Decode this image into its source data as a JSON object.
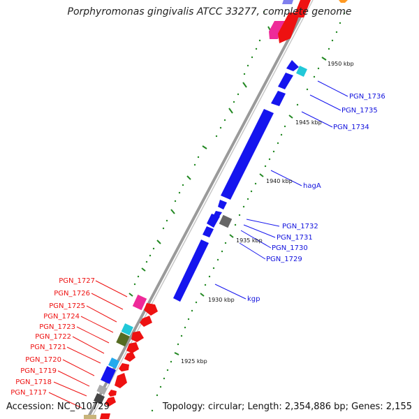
{
  "title": "Porphyromonas gingivalis ATCC 33277, complete genome",
  "accession": "Accession: NC_010729",
  "topology": "Topology: circular; Length: 2,354,886 bp; Genes: 2,155",
  "colors": {
    "blue": "#1515ee",
    "red": "#ee1111",
    "magenta": "#ee2a99",
    "cyan": "#22c8d8",
    "gray": "#777777",
    "tick_green": "#228822",
    "backbone": "#888888"
  },
  "ticks": [
    {
      "label": "1950 kbp"
    },
    {
      "label": "1945 kbp"
    },
    {
      "label": "1940 kbp"
    },
    {
      "label": "1935 kbp"
    },
    {
      "label": "1930 kbp"
    },
    {
      "label": "1925 kbp"
    }
  ],
  "right_labels": [
    {
      "name": "PGN_1736"
    },
    {
      "name": "PGN_1735"
    },
    {
      "name": "PGN_1734"
    },
    {
      "name": "hagA"
    },
    {
      "name": "PGN_1732"
    },
    {
      "name": "PGN_1731"
    },
    {
      "name": "PGN_1730"
    },
    {
      "name": "PGN_1729"
    },
    {
      "name": "kgp"
    }
  ],
  "left_labels": [
    {
      "name": "PGN_1727"
    },
    {
      "name": "PGN_1726"
    },
    {
      "name": "PGN_1725"
    },
    {
      "name": "PGN_1724"
    },
    {
      "name": "PGN_1723"
    },
    {
      "name": "PGN_1722"
    },
    {
      "name": "PGN_1721"
    },
    {
      "name": "PGN_1720"
    },
    {
      "name": "PGN_1719"
    },
    {
      "name": "PGN_1718"
    },
    {
      "name": "PGN_1717"
    }
  ]
}
